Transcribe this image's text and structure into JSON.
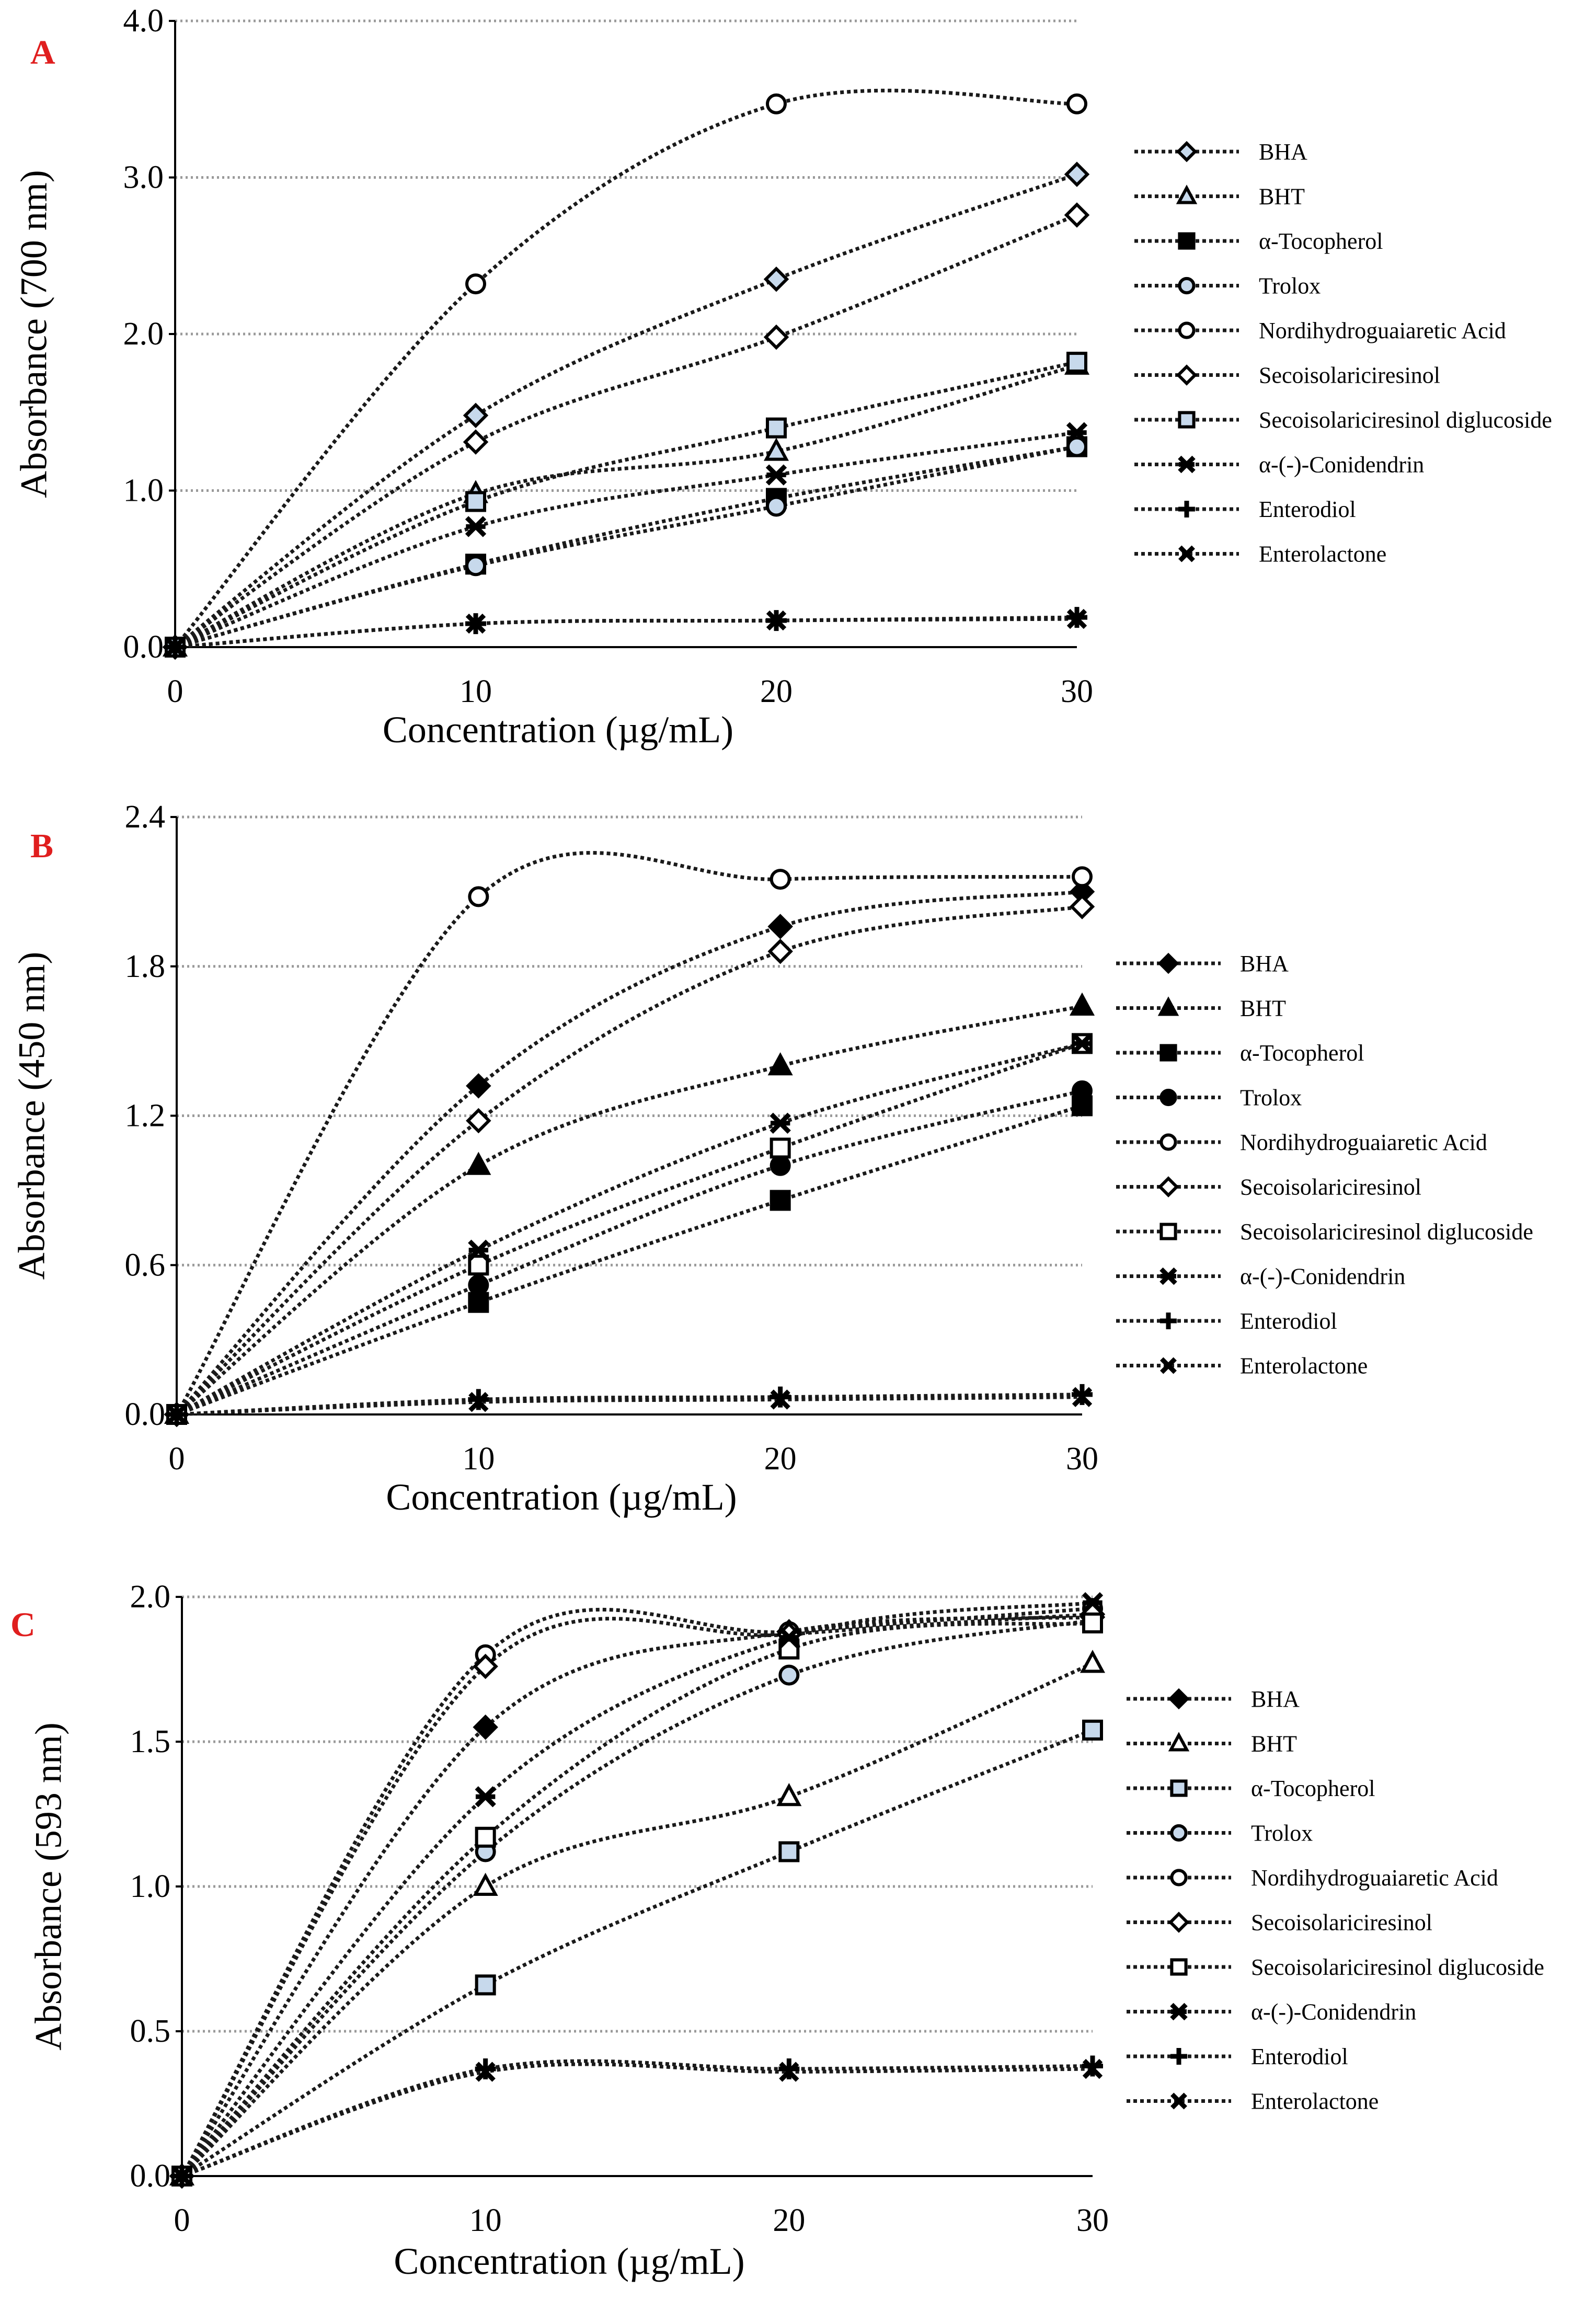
{
  "colors": {
    "panel_letter": "#e01e1e",
    "line": "#1a1a1a",
    "light_fill": "#c7d9ec",
    "dark_fill": "#000000",
    "open_fill": "#ffffff",
    "grid": "#9a9a9a"
  },
  "chart_data": [
    {
      "panel": "A",
      "type": "line",
      "xlabel": "Concentration  (µg/mL)",
      "ylabel": "Absorbance (700 nm)",
      "x": [
        0,
        10,
        20,
        30
      ],
      "xticks": [
        "0",
        "10",
        "20",
        "30"
      ],
      "xlim": [
        0,
        30
      ],
      "ylim": [
        0,
        4.0
      ],
      "yticks": [
        "0.0",
        "1.0",
        "2.0",
        "3.0",
        "4.0"
      ],
      "grid": true,
      "legend_position": "right",
      "series": [
        {
          "name": "BHA",
          "marker": "diamond",
          "fill": "light",
          "values": [
            0,
            1.48,
            2.35,
            3.02
          ]
        },
        {
          "name": "BHT",
          "marker": "triangle",
          "fill": "light",
          "values": [
            0,
            0.98,
            1.25,
            1.8
          ]
        },
        {
          "name": "α-Tocopherol",
          "marker": "square",
          "fill": "dark",
          "values": [
            0,
            0.53,
            0.95,
            1.28
          ]
        },
        {
          "name": "Trolox",
          "marker": "circle",
          "fill": "light",
          "values": [
            0,
            0.52,
            0.9,
            1.28
          ]
        },
        {
          "name": "Nordihydroguaiaretic Acid",
          "marker": "circle",
          "fill": "open",
          "values": [
            0,
            2.32,
            3.47,
            3.47
          ]
        },
        {
          "name": "Secoisolariciresinol",
          "marker": "diamond",
          "fill": "open",
          "values": [
            0,
            1.31,
            1.98,
            2.76
          ]
        },
        {
          "name": "Secoisolariciresinol diglucoside",
          "marker": "square",
          "fill": "light",
          "values": [
            0,
            0.93,
            1.4,
            1.82
          ]
        },
        {
          "name": "α-(-)-Conidendrin",
          "marker": "star",
          "fill": "dark",
          "values": [
            0,
            0.77,
            1.1,
            1.37
          ]
        },
        {
          "name": "Enterodiol",
          "marker": "plus",
          "fill": "dark",
          "values": [
            0,
            0.15,
            0.17,
            0.19
          ]
        },
        {
          "name": "Enterolactone",
          "marker": "x",
          "fill": "dark",
          "values": [
            0,
            0.15,
            0.17,
            0.18
          ]
        }
      ]
    },
    {
      "panel": "B",
      "type": "line",
      "xlabel": "Concentration (µg/mL)",
      "ylabel": "Absorbance (450 nm)",
      "x": [
        0,
        10,
        20,
        30
      ],
      "xticks": [
        "0",
        "10",
        "20",
        "30"
      ],
      "xlim": [
        0,
        30
      ],
      "ylim": [
        0,
        2.4
      ],
      "yticks": [
        "0.0",
        "0.6",
        "1.2",
        "1.8",
        "2.4"
      ],
      "grid": true,
      "legend_position": "right",
      "series": [
        {
          "name": "BHA",
          "marker": "diamond",
          "fill": "dark",
          "values": [
            0,
            1.32,
            1.96,
            2.1
          ]
        },
        {
          "name": "BHT",
          "marker": "triangle",
          "fill": "dark",
          "values": [
            0,
            1.0,
            1.4,
            1.64
          ]
        },
        {
          "name": "α-Tocopherol",
          "marker": "square",
          "fill": "dark",
          "values": [
            0,
            0.45,
            0.86,
            1.24
          ]
        },
        {
          "name": "Trolox",
          "marker": "circle",
          "fill": "dark",
          "values": [
            0,
            0.52,
            1.0,
            1.3
          ]
        },
        {
          "name": "Nordihydroguaiaretic Acid",
          "marker": "circle",
          "fill": "open",
          "values": [
            0,
            2.08,
            2.15,
            2.16
          ]
        },
        {
          "name": "Secoisolariciresinol",
          "marker": "diamond",
          "fill": "open",
          "values": [
            0,
            1.18,
            1.86,
            2.04
          ]
        },
        {
          "name": "Secoisolariciresinol diglucoside",
          "marker": "square",
          "fill": "open",
          "values": [
            0,
            0.6,
            1.07,
            1.49
          ]
        },
        {
          "name": "α-(-)-Conidendrin",
          "marker": "star",
          "fill": "dark",
          "values": [
            0,
            0.66,
            1.17,
            1.49
          ]
        },
        {
          "name": "Enterodiol",
          "marker": "plus",
          "fill": "dark",
          "values": [
            0,
            0.06,
            0.07,
            0.08
          ]
        },
        {
          "name": "Enterolactone",
          "marker": "x",
          "fill": "dark",
          "values": [
            0,
            0.05,
            0.06,
            0.07
          ]
        }
      ]
    },
    {
      "panel": "C",
      "type": "line",
      "xlabel": "Concentration (µg/mL)",
      "ylabel": "Absorbance (593 nm)",
      "x": [
        0,
        10,
        20,
        30
      ],
      "xticks": [
        "0",
        "10",
        "20",
        "30"
      ],
      "xlim": [
        0,
        30
      ],
      "ylim": [
        0,
        2.0
      ],
      "yticks": [
        "0.0",
        "0.5",
        "1.0",
        "1.5",
        "2.0"
      ],
      "grid": true,
      "legend_position": "right",
      "series": [
        {
          "name": "BHA",
          "marker": "diamond",
          "fill": "dark",
          "values": [
            0,
            1.55,
            1.88,
            1.93
          ]
        },
        {
          "name": "BHT",
          "marker": "triangle",
          "fill": "open",
          "values": [
            0,
            1.0,
            1.31,
            1.77
          ]
        },
        {
          "name": "α-Tocopherol",
          "marker": "square",
          "fill": "light",
          "values": [
            0,
            0.66,
            1.12,
            1.54
          ]
        },
        {
          "name": "Trolox",
          "marker": "circle",
          "fill": "light",
          "values": [
            0,
            1.12,
            1.73,
            1.92
          ]
        },
        {
          "name": "Nordihydroguaiaretic Acid",
          "marker": "circle",
          "fill": "open",
          "values": [
            0,
            1.8,
            1.88,
            1.96
          ]
        },
        {
          "name": "Secoisolariciresinol",
          "marker": "diamond",
          "fill": "open",
          "values": [
            0,
            1.76,
            1.87,
            1.94
          ]
        },
        {
          "name": "Secoisolariciresinol diglucoside",
          "marker": "square",
          "fill": "open",
          "values": [
            0,
            1.17,
            1.82,
            1.91
          ]
        },
        {
          "name": "α-(-)-Conidendrin",
          "marker": "star",
          "fill": "dark",
          "values": [
            0,
            1.31,
            1.86,
            1.98
          ]
        },
        {
          "name": "Enterodiol",
          "marker": "plus",
          "fill": "dark",
          "values": [
            0,
            0.37,
            0.37,
            0.38
          ]
        },
        {
          "name": "Enterolactone",
          "marker": "x",
          "fill": "dark",
          "values": [
            0,
            0.36,
            0.36,
            0.37
          ]
        }
      ]
    }
  ]
}
